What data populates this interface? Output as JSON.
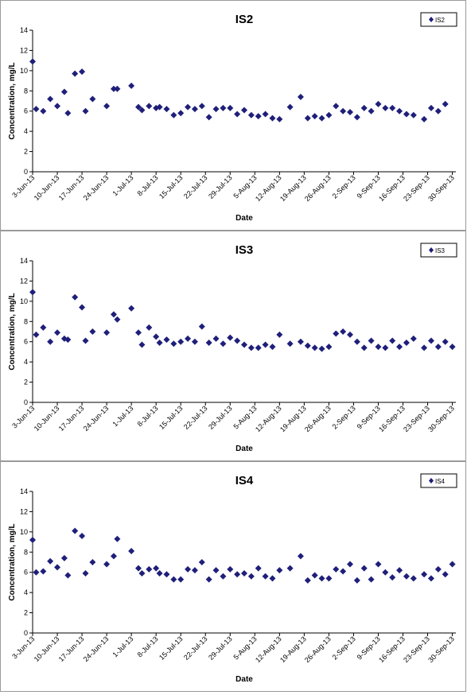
{
  "date_ticks": [
    "3-Jun-13",
    "10-Jun-13",
    "17-Jun-13",
    "24-Jun-13",
    "1-Jul-13",
    "8-Jul-13",
    "15-Jul-13",
    "22-Jul-13",
    "29-Jul-13",
    "5-Aug-13",
    "12-Aug-13",
    "19-Aug-13",
    "26-Aug-13",
    "2-Sep-13",
    "9-Sep-13",
    "16-Sep-13",
    "23-Sep-13",
    "30-Sep-13"
  ],
  "colors": {
    "marker": "#1f1f7a",
    "axis": "#000000"
  },
  "chart_data": [
    {
      "type": "scatter",
      "title": "IS2",
      "xlabel": "Date",
      "ylabel": "Concentration, mg/L",
      "ylim": [
        0,
        14
      ],
      "yticks": [
        0,
        2,
        4,
        6,
        8,
        10,
        12,
        14
      ],
      "xlim": [
        "2013-06-03",
        "2013-09-30"
      ],
      "legend": "top-right",
      "series": [
        {
          "name": "IS2",
          "x": [
            "2013-06-03",
            "2013-06-04",
            "2013-06-06",
            "2013-06-08",
            "2013-06-10",
            "2013-06-12",
            "2013-06-13",
            "2013-06-15",
            "2013-06-17",
            "2013-06-18",
            "2013-06-20",
            "2013-06-24",
            "2013-06-26",
            "2013-06-27",
            "2013-07-01",
            "2013-07-03",
            "2013-07-04",
            "2013-07-06",
            "2013-07-08",
            "2013-07-09",
            "2013-07-11",
            "2013-07-13",
            "2013-07-15",
            "2013-07-17",
            "2013-07-19",
            "2013-07-21",
            "2013-07-23",
            "2013-07-25",
            "2013-07-27",
            "2013-07-29",
            "2013-07-31",
            "2013-08-02",
            "2013-08-04",
            "2013-08-06",
            "2013-08-08",
            "2013-08-10",
            "2013-08-12",
            "2013-08-15",
            "2013-08-18",
            "2013-08-20",
            "2013-08-22",
            "2013-08-24",
            "2013-08-26",
            "2013-08-28",
            "2013-08-30",
            "2013-09-01",
            "2013-09-03",
            "2013-09-05",
            "2013-09-07",
            "2013-09-09",
            "2013-09-11",
            "2013-09-13",
            "2013-09-15",
            "2013-09-17",
            "2013-09-19",
            "2013-09-22",
            "2013-09-24",
            "2013-09-26",
            "2013-09-28"
          ],
          "y": [
            10.9,
            6.2,
            6.0,
            7.2,
            6.5,
            7.9,
            5.8,
            9.7,
            9.9,
            6.0,
            7.2,
            6.5,
            8.2,
            8.2,
            8.5,
            6.4,
            6.1,
            6.5,
            6.3,
            6.4,
            6.2,
            5.6,
            5.8,
            6.4,
            6.2,
            6.5,
            5.4,
            6.2,
            6.3,
            6.3,
            5.7,
            6.1,
            5.6,
            5.5,
            5.7,
            5.3,
            5.2,
            6.4,
            7.4,
            5.3,
            5.5,
            5.3,
            5.6,
            6.5,
            6.0,
            5.9,
            5.4,
            6.3,
            6.0,
            6.7,
            6.3,
            6.3,
            6.0,
            5.7,
            5.6,
            5.2,
            6.3,
            6.0,
            6.7
          ]
        }
      ]
    },
    {
      "type": "scatter",
      "title": "IS3",
      "xlabel": "Date",
      "ylabel": "Concentration, mg/L",
      "ylim": [
        0,
        14
      ],
      "yticks": [
        0,
        2,
        4,
        6,
        8,
        10,
        12,
        14
      ],
      "xlim": [
        "2013-06-03",
        "2013-09-30"
      ],
      "legend": "top-right",
      "series": [
        {
          "name": "IS3",
          "x": [
            "2013-06-03",
            "2013-06-04",
            "2013-06-06",
            "2013-06-08",
            "2013-06-10",
            "2013-06-12",
            "2013-06-13",
            "2013-06-15",
            "2013-06-17",
            "2013-06-18",
            "2013-06-20",
            "2013-06-24",
            "2013-06-26",
            "2013-06-27",
            "2013-07-01",
            "2013-07-03",
            "2013-07-04",
            "2013-07-06",
            "2013-07-08",
            "2013-07-09",
            "2013-07-11",
            "2013-07-13",
            "2013-07-15",
            "2013-07-17",
            "2013-07-19",
            "2013-07-21",
            "2013-07-23",
            "2013-07-25",
            "2013-07-27",
            "2013-07-29",
            "2013-07-31",
            "2013-08-02",
            "2013-08-04",
            "2013-08-06",
            "2013-08-08",
            "2013-08-10",
            "2013-08-12",
            "2013-08-15",
            "2013-08-18",
            "2013-08-20",
            "2013-08-22",
            "2013-08-24",
            "2013-08-26",
            "2013-08-28",
            "2013-08-30",
            "2013-09-01",
            "2013-09-03",
            "2013-09-05",
            "2013-09-07",
            "2013-09-09",
            "2013-09-11",
            "2013-09-13",
            "2013-09-15",
            "2013-09-17",
            "2013-09-19",
            "2013-09-22",
            "2013-09-24",
            "2013-09-26",
            "2013-09-28",
            "2013-09-30"
          ],
          "y": [
            10.9,
            6.7,
            7.4,
            6.0,
            6.9,
            6.3,
            6.2,
            10.4,
            9.4,
            6.1,
            7.0,
            6.9,
            8.7,
            8.2,
            9.3,
            6.9,
            5.7,
            7.4,
            6.5,
            5.9,
            6.2,
            5.8,
            6.0,
            6.3,
            6.0,
            7.5,
            5.9,
            6.3,
            5.8,
            6.4,
            6.1,
            5.7,
            5.4,
            5.4,
            5.7,
            5.5,
            6.7,
            5.8,
            6.0,
            5.6,
            5.4,
            5.3,
            5.5,
            6.8,
            7.0,
            6.7,
            6.0,
            5.4,
            6.1,
            5.5,
            5.4,
            6.1,
            5.5,
            5.9,
            6.3,
            5.4,
            6.1,
            5.5,
            6.0,
            5.5
          ]
        }
      ]
    },
    {
      "type": "scatter",
      "title": "IS4",
      "xlabel": "Date",
      "ylabel": "Concentration, mg/L",
      "ylim": [
        0,
        14
      ],
      "yticks": [
        0,
        2,
        4,
        6,
        8,
        10,
        12,
        14
      ],
      "xlim": [
        "2013-06-03",
        "2013-09-30"
      ],
      "legend": "top-right",
      "series": [
        {
          "name": "IS4",
          "x": [
            "2013-06-03",
            "2013-06-04",
            "2013-06-06",
            "2013-06-08",
            "2013-06-10",
            "2013-06-12",
            "2013-06-13",
            "2013-06-15",
            "2013-06-17",
            "2013-06-18",
            "2013-06-20",
            "2013-06-24",
            "2013-06-26",
            "2013-06-27",
            "2013-07-01",
            "2013-07-03",
            "2013-07-04",
            "2013-07-06",
            "2013-07-08",
            "2013-07-09",
            "2013-07-11",
            "2013-07-13",
            "2013-07-15",
            "2013-07-17",
            "2013-07-19",
            "2013-07-21",
            "2013-07-23",
            "2013-07-25",
            "2013-07-27",
            "2013-07-29",
            "2013-07-31",
            "2013-08-02",
            "2013-08-04",
            "2013-08-06",
            "2013-08-08",
            "2013-08-10",
            "2013-08-12",
            "2013-08-15",
            "2013-08-18",
            "2013-08-20",
            "2013-08-22",
            "2013-08-24",
            "2013-08-26",
            "2013-08-28",
            "2013-08-30",
            "2013-09-01",
            "2013-09-03",
            "2013-09-05",
            "2013-09-07",
            "2013-09-09",
            "2013-09-11",
            "2013-09-13",
            "2013-09-15",
            "2013-09-17",
            "2013-09-19",
            "2013-09-22",
            "2013-09-24",
            "2013-09-26",
            "2013-09-28",
            "2013-09-30"
          ],
          "y": [
            9.2,
            6.0,
            6.1,
            7.1,
            6.5,
            7.4,
            5.7,
            10.1,
            9.6,
            5.9,
            7.0,
            6.8,
            7.6,
            9.3,
            8.1,
            6.4,
            5.9,
            6.3,
            6.4,
            5.9,
            5.8,
            5.3,
            5.3,
            6.3,
            6.2,
            7.0,
            5.3,
            6.2,
            5.6,
            6.3,
            5.8,
            5.9,
            5.6,
            6.4,
            5.6,
            5.4,
            6.2,
            6.4,
            7.6,
            5.2,
            5.7,
            5.4,
            5.4,
            6.3,
            6.1,
            6.8,
            5.2,
            6.4,
            5.3,
            6.8,
            6.0,
            5.5,
            6.2,
            5.6,
            5.4,
            5.8,
            5.4,
            6.3,
            5.8,
            6.8
          ]
        }
      ]
    }
  ]
}
